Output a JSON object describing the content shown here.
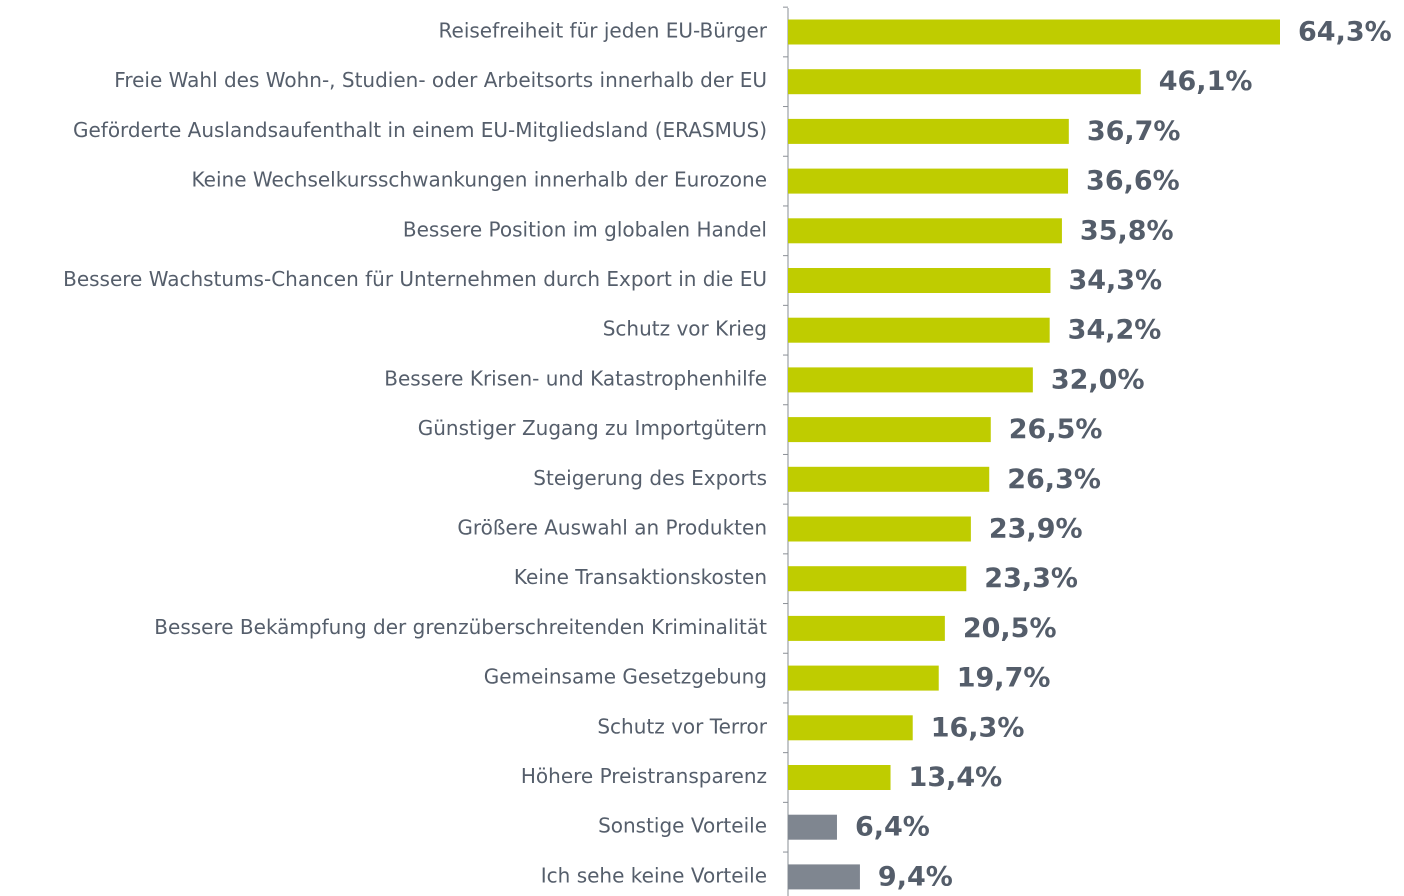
{
  "chart_data": {
    "type": "hbar",
    "categories": [
      "Reisefreiheit für jeden EU-Bürger",
      "Freie Wahl des Wohn-, Studien- oder Arbeitsorts innerhalb der EU",
      "Geförderte Auslandsaufenthalt in einem EU-Mitgliedsland (ERASMUS)",
      "Keine Wechselkursschwankungen innerhalb der Eurozone",
      "Bessere Position im globalen Handel",
      "Bessere Wachstums-Chancen für Unternehmen durch Export in die EU",
      "Schutz vor Krieg",
      "Bessere Krisen- und Katastrophenhilfe",
      "Günstiger Zugang zu Importgütern",
      "Steigerung des Exports",
      "Größere Auswahl an Produkten",
      "Keine Transaktionskosten",
      "Bessere Bekämpfung der grenzüberschreitenden Kriminalität",
      "Gemeinsame Gesetzgebung",
      "Schutz vor Terror",
      "Höhere Preistransparenz",
      "Sonstige Vorteile",
      "Ich sehe keine Vorteile"
    ],
    "values": [
      64.3,
      46.1,
      36.7,
      36.6,
      35.8,
      34.3,
      34.2,
      32.0,
      26.5,
      26.3,
      23.9,
      23.3,
      20.5,
      19.7,
      16.3,
      13.4,
      6.4,
      9.4
    ],
    "value_labels": [
      "64,3%",
      "46,1%",
      "36,7%",
      "36,6%",
      "35,8%",
      "34,3%",
      "34,2%",
      "32,0%",
      "26,5%",
      "26,3%",
      "23,9%",
      "23,3%",
      "20,5%",
      "19,7%",
      "16,3%",
      "13,4%",
      "6,4%",
      "9,4%"
    ],
    "colors": [
      "#bfcc00",
      "#bfcc00",
      "#bfcc00",
      "#bfcc00",
      "#bfcc00",
      "#bfcc00",
      "#bfcc00",
      "#bfcc00",
      "#bfcc00",
      "#bfcc00",
      "#bfcc00",
      "#bfcc00",
      "#bfcc00",
      "#bfcc00",
      "#bfcc00",
      "#bfcc00",
      "#7f8690",
      "#7f8690"
    ]
  }
}
